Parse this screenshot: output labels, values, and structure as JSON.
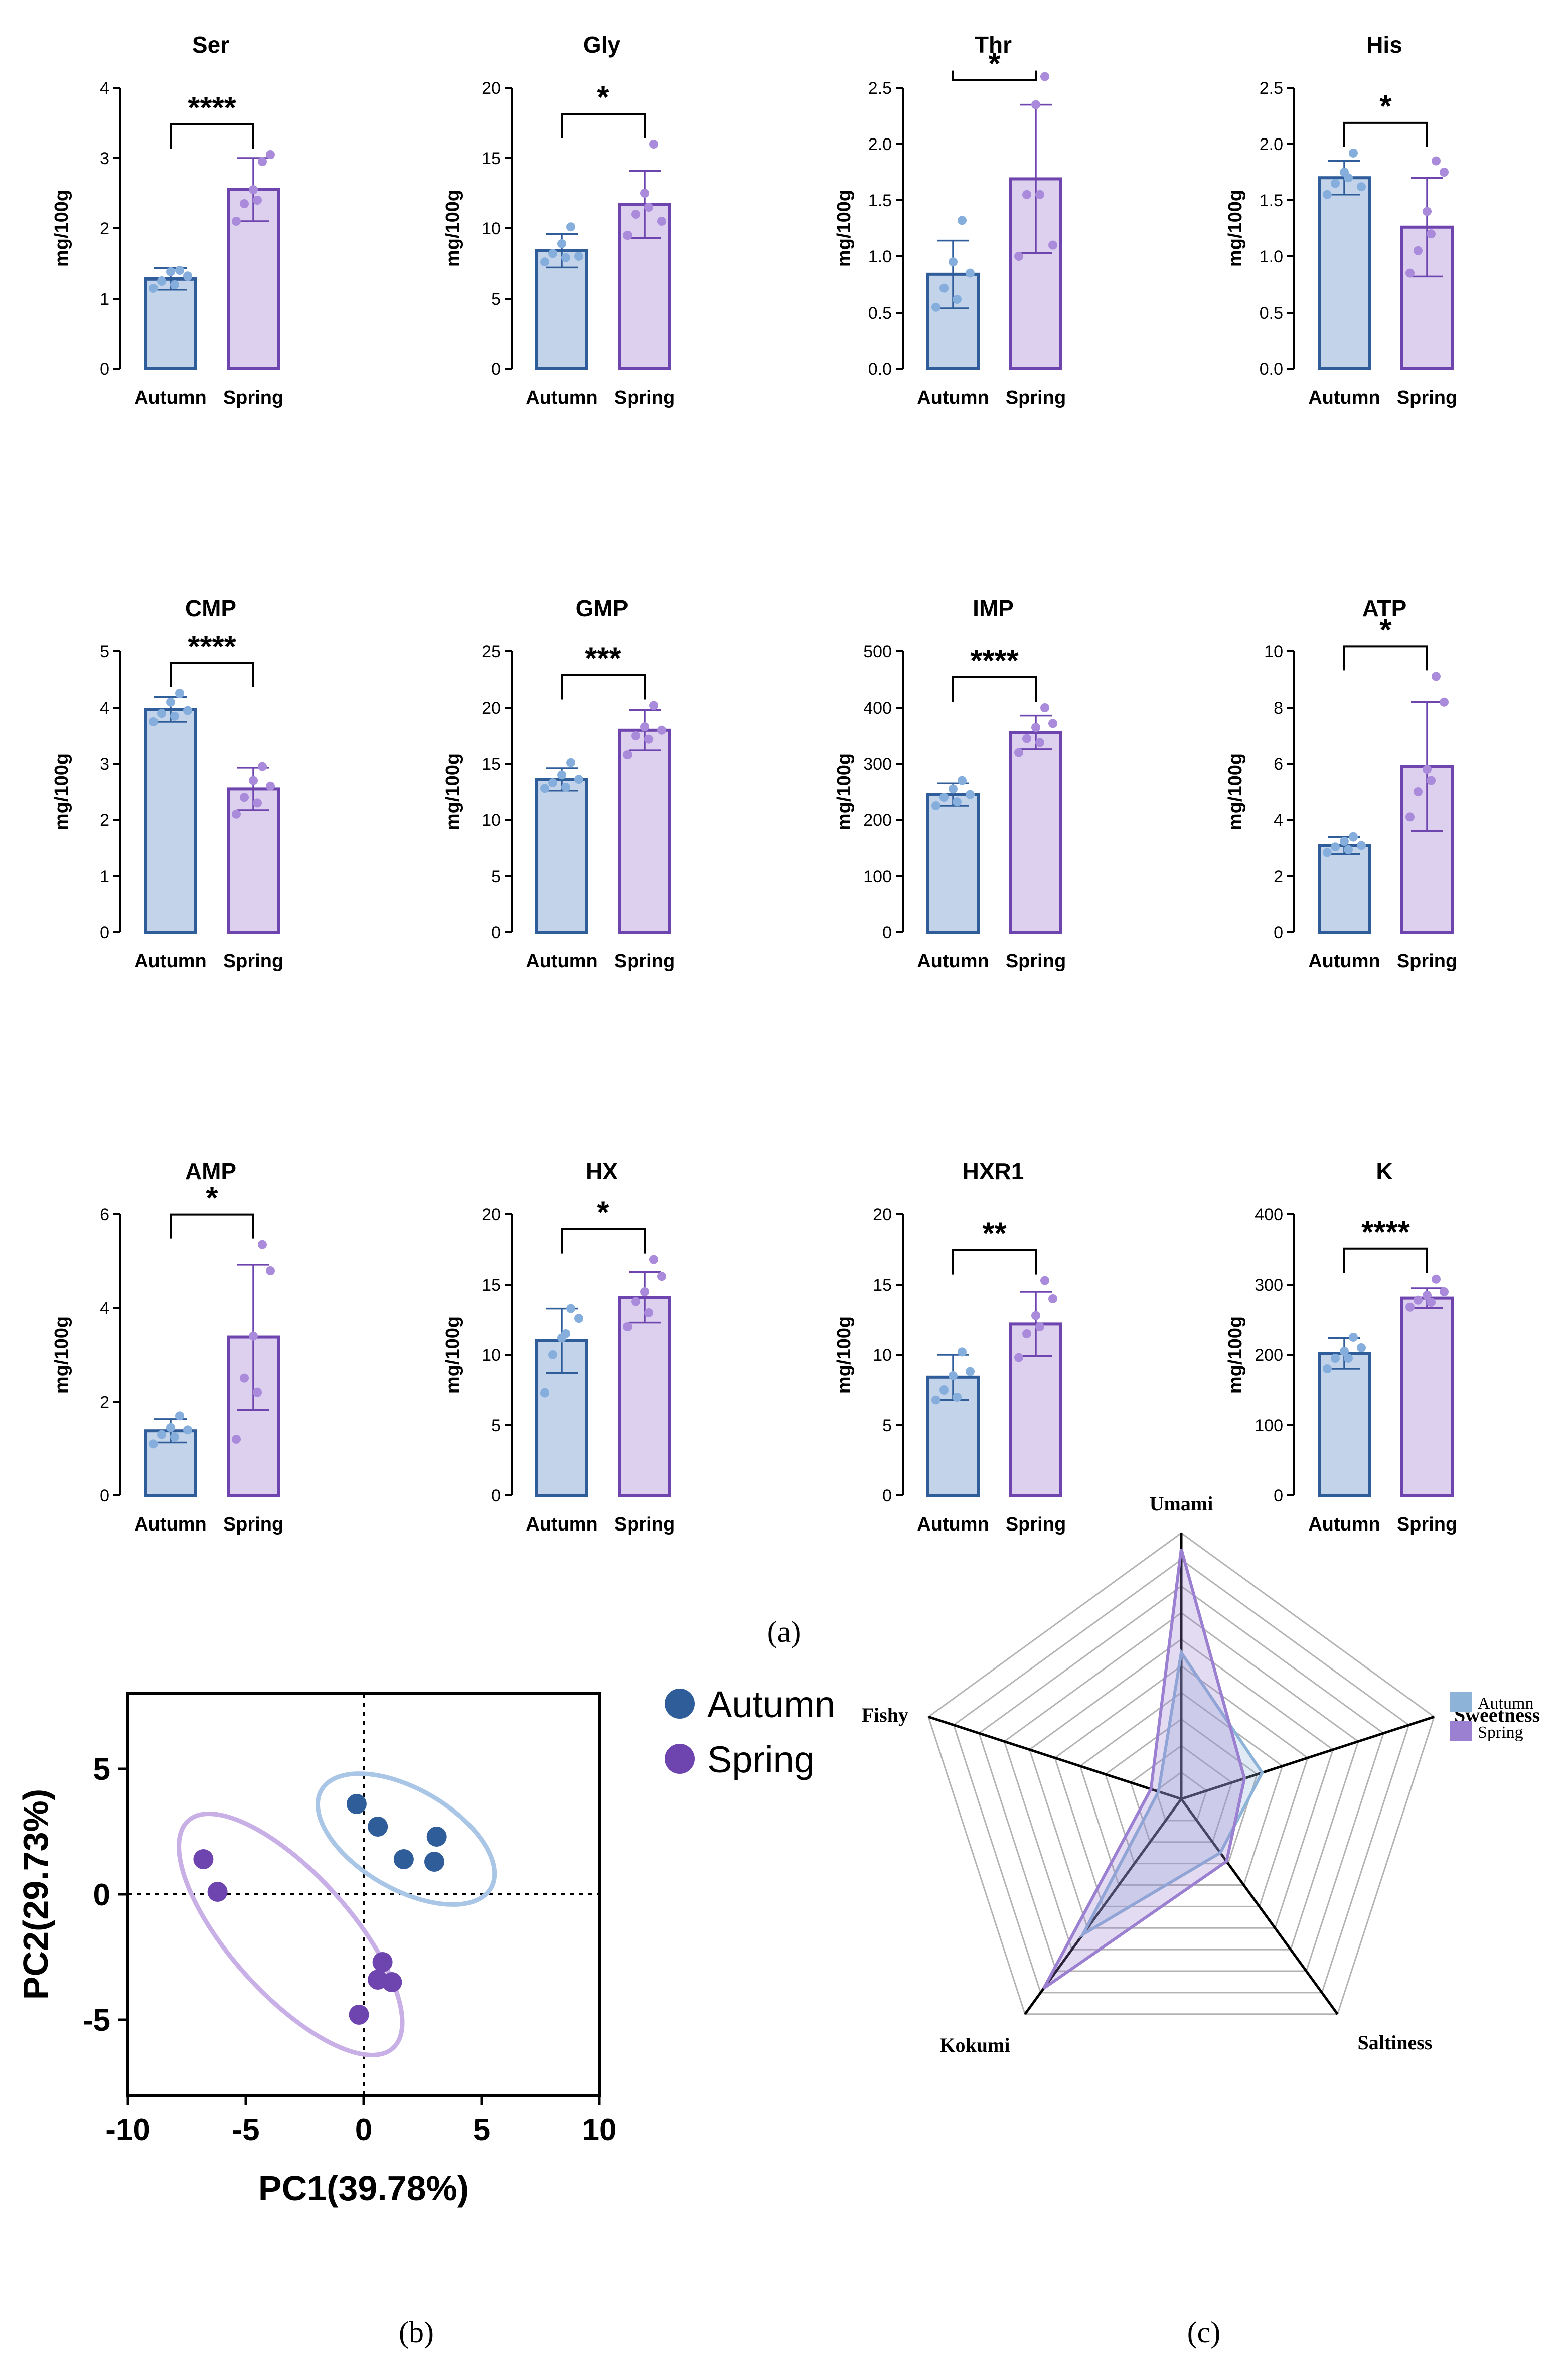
{
  "colors": {
    "autumn_fill": "#c3d4ea",
    "autumn_edge": "#2f5d9a",
    "autumn_dot": "#86aedd",
    "spring_fill": "#ddd0ee",
    "spring_edge": "#6e44ae",
    "spring_dot": "#aa8ada",
    "pca_autumn": "#2f5d9a",
    "pca_spring": "#6e44ae",
    "pca_autumn_ellipse": "#a9c6e6",
    "pca_spring_ellipse": "#c8afe6",
    "radar_autumn": "#8db4d8",
    "radar_spring": "#9b7fd0",
    "axis": "#000000"
  },
  "panel_labels": {
    "a": "(a)",
    "b": "(b)",
    "c": "(c)"
  },
  "chart_data": [
    {
      "type": "bar",
      "title": "Ser",
      "ylabel": "mg/100g",
      "categories": [
        "Autumn",
        "Spring"
      ],
      "values": [
        1.28,
        2.55
      ],
      "errors": [
        0.15,
        0.45
      ],
      "points": [
        [
          1.15,
          1.25,
          1.38,
          1.4,
          1.32,
          1.2
        ],
        [
          2.1,
          2.35,
          2.55,
          2.95,
          3.05,
          2.4
        ]
      ],
      "ylim": [
        0,
        4
      ],
      "yticks": [
        "0",
        "1",
        "2",
        "3",
        "4"
      ],
      "significance": "****"
    },
    {
      "type": "bar",
      "title": "Gly",
      "ylabel": "mg/100g",
      "categories": [
        "Autumn",
        "Spring"
      ],
      "values": [
        8.4,
        11.7
      ],
      "errors": [
        1.2,
        2.4
      ],
      "points": [
        [
          7.6,
          8.2,
          8.9,
          10.1,
          8.0,
          7.9
        ],
        [
          9.5,
          11.0,
          12.5,
          16.0,
          10.5,
          11.5
        ]
      ],
      "ylim": [
        0,
        20
      ],
      "yticks": [
        "0",
        "5",
        "10",
        "15",
        "20"
      ],
      "significance": "*"
    },
    {
      "type": "bar",
      "title": "Thr",
      "ylabel": "mg/100g",
      "categories": [
        "Autumn",
        "Spring"
      ],
      "values": [
        0.84,
        1.69
      ],
      "errors": [
        0.3,
        0.66
      ],
      "points": [
        [
          0.55,
          0.72,
          0.95,
          1.32,
          0.85,
          0.62
        ],
        [
          1.0,
          1.55,
          2.35,
          2.6,
          1.1,
          1.55
        ]
      ],
      "ylim": [
        0,
        2.5
      ],
      "yticks": [
        "0.0",
        "0.5",
        "1.0",
        "1.5",
        "2.0",
        "2.5"
      ],
      "significance": "*"
    },
    {
      "type": "bar",
      "title": "His",
      "ylabel": "mg/100g",
      "categories": [
        "Autumn",
        "Spring"
      ],
      "values": [
        1.7,
        1.26
      ],
      "errors": [
        0.15,
        0.44
      ],
      "points": [
        [
          1.55,
          1.65,
          1.75,
          1.92,
          1.62,
          1.7
        ],
        [
          0.85,
          1.05,
          1.4,
          1.85,
          1.75,
          1.2
        ]
      ],
      "ylim": [
        0,
        2.5
      ],
      "yticks": [
        "0.0",
        "0.5",
        "1.0",
        "1.5",
        "2.0",
        "2.5"
      ],
      "significance": "*"
    },
    {
      "type": "bar",
      "title": "CMP",
      "ylabel": "mg/100g",
      "categories": [
        "Autumn",
        "Spring"
      ],
      "values": [
        3.97,
        2.55
      ],
      "errors": [
        0.22,
        0.38
      ],
      "points": [
        [
          3.75,
          3.9,
          4.1,
          4.25,
          3.95,
          3.85
        ],
        [
          2.1,
          2.4,
          2.7,
          2.95,
          2.6,
          2.3
        ]
      ],
      "ylim": [
        0,
        5
      ],
      "yticks": [
        "0",
        "1",
        "2",
        "3",
        "4",
        "5"
      ],
      "significance": "****"
    },
    {
      "type": "bar",
      "title": "GMP",
      "ylabel": "mg/100g",
      "categories": [
        "Autumn",
        "Spring"
      ],
      "values": [
        13.6,
        18.0
      ],
      "errors": [
        1.0,
        1.8
      ],
      "points": [
        [
          12.8,
          13.3,
          14.0,
          15.1,
          13.6,
          12.9
        ],
        [
          15.8,
          17.5,
          18.3,
          20.2,
          18.0,
          17.2
        ]
      ],
      "ylim": [
        0,
        25
      ],
      "yticks": [
        "0",
        "5",
        "10",
        "15",
        "20",
        "25"
      ],
      "significance": "***"
    },
    {
      "type": "bar",
      "title": "IMP",
      "ylabel": "mg/100g",
      "categories": [
        "Autumn",
        "Spring"
      ],
      "values": [
        245,
        356
      ],
      "errors": [
        20,
        30
      ],
      "points": [
        [
          225,
          240,
          255,
          270,
          245,
          232
        ],
        [
          320,
          345,
          365,
          400,
          372,
          338
        ]
      ],
      "ylim": [
        0,
        500
      ],
      "yticks": [
        "0",
        "100",
        "200",
        "300",
        "400",
        "500"
      ],
      "significance": "****"
    },
    {
      "type": "bar",
      "title": "ATP",
      "ylabel": "mg/100g",
      "categories": [
        "Autumn",
        "Spring"
      ],
      "values": [
        3.1,
        5.9
      ],
      "errors": [
        0.3,
        2.3
      ],
      "points": [
        [
          2.85,
          3.05,
          3.25,
          3.4,
          3.1,
          2.95
        ],
        [
          4.1,
          5.0,
          5.8,
          9.1,
          8.2,
          5.4
        ]
      ],
      "ylim": [
        0,
        10
      ],
      "yticks": [
        "0",
        "2",
        "4",
        "6",
        "8",
        "10"
      ],
      "significance": "*"
    },
    {
      "type": "bar",
      "title": "AMP",
      "ylabel": "mg/100g",
      "categories": [
        "Autumn",
        "Spring"
      ],
      "values": [
        1.38,
        3.38
      ],
      "errors": [
        0.25,
        1.55
      ],
      "points": [
        [
          1.1,
          1.3,
          1.45,
          1.7,
          1.4,
          1.25
        ],
        [
          1.2,
          2.5,
          3.4,
          5.35,
          4.8,
          2.2
        ]
      ],
      "ylim": [
        0,
        6
      ],
      "yticks": [
        "0",
        "2",
        "4",
        "6"
      ],
      "significance": "*"
    },
    {
      "type": "bar",
      "title": "HX",
      "ylabel": "mg/100g",
      "categories": [
        "Autumn",
        "Spring"
      ],
      "values": [
        11.0,
        14.1
      ],
      "errors": [
        2.3,
        1.8
      ],
      "points": [
        [
          7.3,
          10.0,
          11.2,
          13.3,
          12.6,
          11.5
        ],
        [
          12.0,
          13.8,
          14.5,
          16.8,
          15.6,
          13.0
        ]
      ],
      "ylim": [
        0,
        20
      ],
      "yticks": [
        "0",
        "5",
        "10",
        "15",
        "20"
      ],
      "significance": "*"
    },
    {
      "type": "bar",
      "title": "HXR1",
      "ylabel": "mg/100g",
      "categories": [
        "Autumn",
        "Spring"
      ],
      "values": [
        8.4,
        12.2
      ],
      "errors": [
        1.6,
        2.3
      ],
      "points": [
        [
          6.8,
          7.5,
          8.5,
          10.2,
          8.8,
          7.0
        ],
        [
          9.8,
          11.5,
          12.8,
          15.3,
          14.0,
          12.0
        ]
      ],
      "ylim": [
        0,
        20
      ],
      "yticks": [
        "0",
        "5",
        "10",
        "15",
        "20"
      ],
      "significance": "**"
    },
    {
      "type": "bar",
      "title": "K",
      "ylabel": "mg/100g",
      "categories": [
        "Autumn",
        "Spring"
      ],
      "values": [
        202,
        281
      ],
      "errors": [
        22,
        14
      ],
      "points": [
        [
          180,
          195,
          205,
          225,
          210,
          195
        ],
        [
          268,
          278,
          285,
          308,
          290,
          275
        ]
      ],
      "ylim": [
        0,
        400
      ],
      "yticks": [
        "0",
        "100",
        "200",
        "300",
        "400"
      ],
      "significance": "****"
    },
    {
      "type": "scatter",
      "xlabel": "PC1(39.78%)",
      "ylabel": "PC2(29.73%)",
      "xlim": [
        -10,
        10
      ],
      "ylim": [
        -8,
        8
      ],
      "xticks": [
        "-10",
        "-5",
        "0",
        "5",
        "10"
      ],
      "yticks": [
        "-5",
        "0",
        "5"
      ],
      "legend": [
        "Autumn",
        "Spring"
      ],
      "series": [
        {
          "name": "Autumn",
          "points": [
            [
              -0.3,
              3.6
            ],
            [
              0.6,
              2.7
            ],
            [
              3.1,
              2.3
            ],
            [
              1.7,
              1.4
            ],
            [
              3.0,
              1.3
            ]
          ]
        },
        {
          "name": "Spring",
          "points": [
            [
              -6.8,
              1.4
            ],
            [
              -6.2,
              0.1
            ],
            [
              0.8,
              -2.7
            ],
            [
              0.6,
              -3.4
            ],
            [
              1.2,
              -3.5
            ],
            [
              -0.2,
              -4.8
            ]
          ]
        }
      ]
    },
    {
      "type": "radar",
      "axes": [
        "Umami",
        "Sweetness",
        "Saltiness",
        "Kokumi",
        "Fishy"
      ],
      "range": [
        0,
        10
      ],
      "legend": [
        "Autumn",
        "Spring"
      ],
      "series": [
        {
          "name": "Autumn",
          "values": [
            5.5,
            3.2,
            2.5,
            6.3,
            0.9
          ]
        },
        {
          "name": "Spring",
          "values": [
            9.4,
            2.5,
            2.9,
            8.8,
            1.2
          ]
        }
      ]
    }
  ]
}
